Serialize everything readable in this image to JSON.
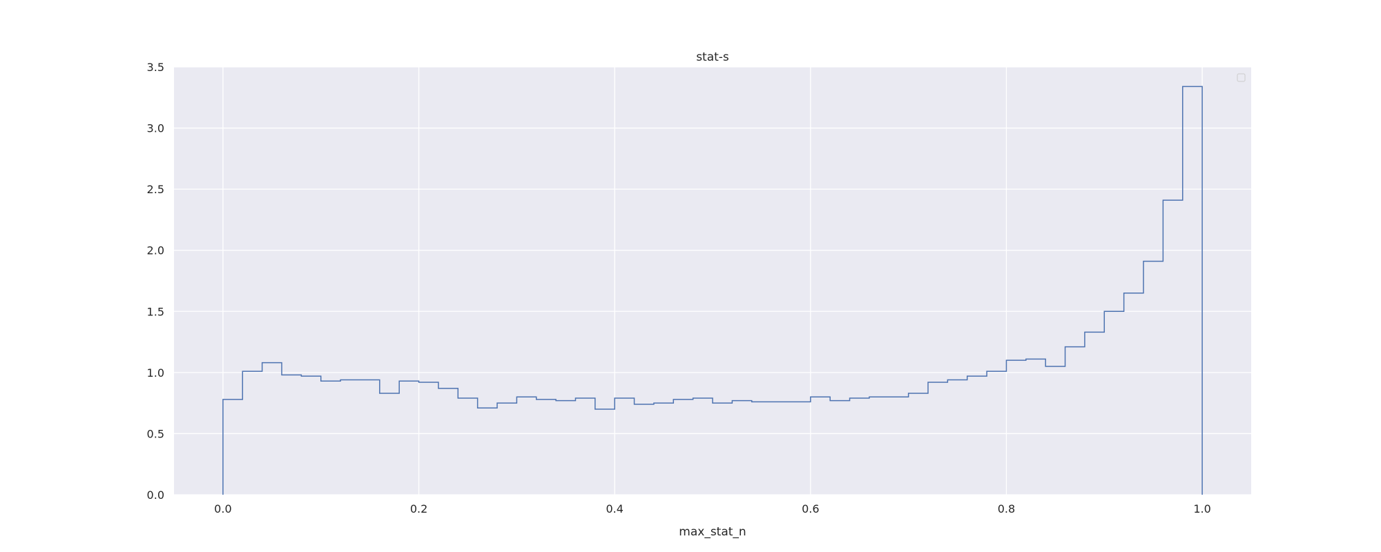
{
  "chart_data": {
    "type": "histogram-step",
    "title": "stat-s",
    "xlabel": "max_stat_n",
    "ylabel": "",
    "xlim": [
      -0.05,
      1.05
    ],
    "ylim": [
      0,
      3.5
    ],
    "xticks": [
      0.0,
      0.2,
      0.4,
      0.6,
      0.8,
      1.0
    ],
    "xtick_labels": [
      "0.0",
      "0.2",
      "0.4",
      "0.6",
      "0.8",
      "1.0"
    ],
    "yticks": [
      0.0,
      0.5,
      1.0,
      1.5,
      2.0,
      2.5,
      3.0,
      3.5
    ],
    "ytick_labels": [
      "0.0",
      "0.5",
      "1.0",
      "1.5",
      "2.0",
      "2.5",
      "3.0",
      "3.5"
    ],
    "grid": true,
    "legend": "top-right (empty)",
    "bin_edges": [
      0.0,
      0.02,
      0.04,
      0.06,
      0.08,
      0.1,
      0.12,
      0.14,
      0.16,
      0.18,
      0.2,
      0.22,
      0.24,
      0.26,
      0.28,
      0.3,
      0.32,
      0.34,
      0.36,
      0.38,
      0.4,
      0.42,
      0.44,
      0.46,
      0.48,
      0.5,
      0.52,
      0.54,
      0.56,
      0.58,
      0.6,
      0.62,
      0.64,
      0.66,
      0.68,
      0.7,
      0.72,
      0.74,
      0.76,
      0.78,
      0.8,
      0.82,
      0.84,
      0.86,
      0.88,
      0.9,
      0.92,
      0.94,
      0.96,
      0.98,
      1.0
    ],
    "values": [
      0.78,
      1.01,
      1.08,
      0.98,
      0.97,
      0.93,
      0.94,
      0.94,
      0.83,
      0.93,
      0.92,
      0.87,
      0.79,
      0.71,
      0.75,
      0.8,
      0.78,
      0.77,
      0.79,
      0.7,
      0.79,
      0.74,
      0.75,
      0.78,
      0.79,
      0.75,
      0.77,
      0.76,
      0.76,
      0.76,
      0.8,
      0.77,
      0.79,
      0.8,
      0.8,
      0.83,
      0.92,
      0.94,
      0.97,
      1.01,
      1.1,
      1.11,
      1.05,
      1.21,
      1.33,
      1.5,
      1.65,
      1.91,
      2.41,
      3.34
    ],
    "colors": {
      "line": "#4c72b0",
      "plot_bg": "#eaeaf2",
      "grid": "#ffffff",
      "text": "#262626"
    }
  }
}
